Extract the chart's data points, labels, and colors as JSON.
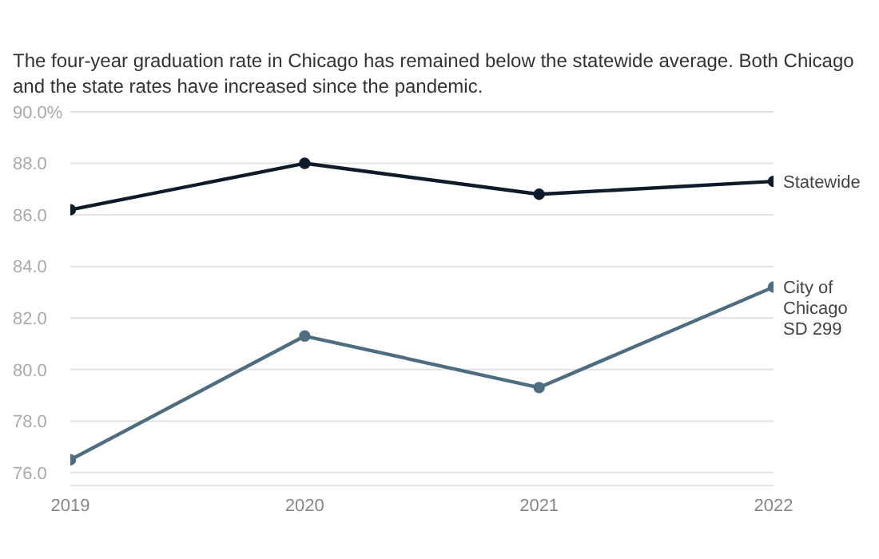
{
  "chart_data": {
    "type": "line",
    "subtitle": "The four-year graduation rate in Chicago has remained below the statewide average. Both Chicago and the state rates have increased since the pandemic.",
    "categories": [
      "2019",
      "2020",
      "2021",
      "2022"
    ],
    "series": [
      {
        "name": "Statewide",
        "color": "#0d1b2a",
        "values": [
          86.2,
          88.0,
          86.8,
          87.3
        ]
      },
      {
        "name": "City of Chicago SD 299",
        "color": "#4f6d80",
        "values": [
          76.5,
          81.3,
          79.3,
          83.2
        ]
      }
    ],
    "ylim": [
      75.5,
      90
    ],
    "yticks": [
      {
        "value": 76,
        "label": "76.0"
      },
      {
        "value": 78,
        "label": "78.0"
      },
      {
        "value": 80,
        "label": "80.0"
      },
      {
        "value": 82,
        "label": "82.0"
      },
      {
        "value": 84,
        "label": "84.0"
      },
      {
        "value": 86,
        "label": "86.0"
      },
      {
        "value": 88,
        "label": "88.0"
      },
      {
        "value": 90,
        "label": "90.0%"
      }
    ],
    "grid": "y",
    "legend": false,
    "marker": "circle",
    "line_style": "solid"
  }
}
